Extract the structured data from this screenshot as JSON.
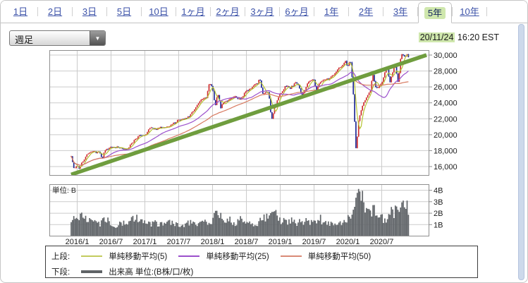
{
  "tabs": {
    "items": [
      {
        "label": "1日"
      },
      {
        "label": "2日"
      },
      {
        "label": "3日"
      },
      {
        "label": "5日"
      },
      {
        "label": "10日"
      },
      {
        "label": "1ヶ月"
      },
      {
        "label": "2ヶ月"
      },
      {
        "label": "3ヶ月"
      },
      {
        "label": "6ヶ月"
      },
      {
        "label": "1年"
      },
      {
        "label": "2年"
      },
      {
        "label": "3年"
      },
      {
        "label": "5年",
        "selected": true
      },
      {
        "label": "10年"
      }
    ],
    "selected_highlight_color": "#cfe7ad",
    "link_color": "#3c52a8"
  },
  "toolbar": {
    "interval": {
      "value": "週足"
    },
    "timestamp": {
      "date": "20/11/24",
      "time": "16:20 EST",
      "date_highlight_color": "#cfe7ad"
    }
  },
  "chart_data": {
    "type": "candlestick",
    "interval_label": "週足",
    "range_label": "5年",
    "x_labels": [
      "2016/1",
      "2016/7",
      "2017/1",
      "2017/7",
      "2018/1",
      "2018/7",
      "2019/1",
      "2019/7",
      "2020/1",
      "2020/7"
    ],
    "main": {
      "ylim": [
        14850,
        30650
      ],
      "yticks": [
        {
          "label": "30,000",
          "value": 30000
        },
        {
          "label": "28,000",
          "value": 28000
        },
        {
          "label": "26,000",
          "value": 26000
        },
        {
          "label": "24,000",
          "value": 24000
        },
        {
          "label": "22,000",
          "value": 22000
        },
        {
          "label": "20,000",
          "value": 20000
        },
        {
          "label": "18,000",
          "value": 18000
        },
        {
          "label": "16,000",
          "value": 16000
        }
      ],
      "candle_up_color": "#cf2e2e",
      "candle_down_color": "#202a96",
      "sma": [
        {
          "window": 5,
          "color": "#b6c332"
        },
        {
          "window": 25,
          "color": "#9b50cc"
        },
        {
          "window": 50,
          "color": "#d87a60"
        }
      ],
      "trendline": {
        "color": "#6f9d3e",
        "width": 5.5,
        "from": {
          "month": "2015/12",
          "price": 15000
        },
        "to": {
          "month": "2021/3",
          "price": 30000
        }
      }
    },
    "volume": {
      "unit_label": "単位: B",
      "ylim": [
        0,
        4.5
      ],
      "yticks": [
        {
          "label": "4B",
          "value": 4
        },
        {
          "label": "3B",
          "value": 3
        },
        {
          "label": "2B",
          "value": 2
        },
        {
          "label": "1B",
          "value": 1
        }
      ],
      "bar_color": "#616569"
    },
    "monthly_anchors": [
      {
        "m": "2015/12",
        "close": 17400,
        "vol": 1.2
      },
      {
        "m": "2016/1",
        "close": 16100,
        "low": 15650,
        "vol": 1.9
      },
      {
        "m": "2016/2",
        "close": 16650,
        "low": 15700,
        "vol": 1.7
      },
      {
        "m": "2016/3",
        "close": 17700,
        "vol": 1.5
      },
      {
        "m": "2016/4",
        "close": 17800,
        "vol": 1.2
      },
      {
        "m": "2016/5",
        "close": 17800,
        "vol": 1.1
      },
      {
        "m": "2016/6",
        "close": 17950,
        "low": 17100,
        "vol": 1.6
      },
      {
        "m": "2016/7",
        "close": 18400,
        "vol": 1.1
      },
      {
        "m": "2016/8",
        "close": 18450,
        "vol": 0.9
      },
      {
        "m": "2016/9",
        "close": 18300,
        "vol": 1.2
      },
      {
        "m": "2016/10",
        "close": 18150,
        "vol": 1.1
      },
      {
        "m": "2016/11",
        "close": 19150,
        "vol": 1.7
      },
      {
        "m": "2016/12",
        "close": 19800,
        "vol": 1.4
      },
      {
        "m": "2017/1",
        "close": 19900,
        "vol": 1.1
      },
      {
        "m": "2017/2",
        "close": 20800,
        "vol": 1.0
      },
      {
        "m": "2017/3",
        "close": 20700,
        "vol": 1.1
      },
      {
        "m": "2017/4",
        "close": 20950,
        "vol": 1.0
      },
      {
        "m": "2017/5",
        "close": 21000,
        "vol": 1.1
      },
      {
        "m": "2017/6",
        "close": 21350,
        "vol": 1.2
      },
      {
        "m": "2017/7",
        "close": 21800,
        "vol": 0.9
      },
      {
        "m": "2017/8",
        "close": 21950,
        "vol": 1.0
      },
      {
        "m": "2017/9",
        "close": 22400,
        "vol": 1.1
      },
      {
        "m": "2017/10",
        "close": 23400,
        "vol": 1.1
      },
      {
        "m": "2017/11",
        "close": 24300,
        "vol": 1.2
      },
      {
        "m": "2017/12",
        "close": 24700,
        "vol": 1.1
      },
      {
        "m": "2018/1",
        "close": 26150,
        "high": 26620,
        "vol": 1.5
      },
      {
        "m": "2018/2",
        "close": 25300,
        "low": 23450,
        "vol": 2.2
      },
      {
        "m": "2018/3",
        "close": 24100,
        "low": 23350,
        "vol": 1.7
      },
      {
        "m": "2018/4",
        "close": 24300,
        "vol": 1.4
      },
      {
        "m": "2018/5",
        "close": 24800,
        "vol": 1.2
      },
      {
        "m": "2018/6",
        "close": 24300,
        "vol": 1.4
      },
      {
        "m": "2018/7",
        "close": 25400,
        "vol": 1.0
      },
      {
        "m": "2018/8",
        "close": 25950,
        "vol": 1.0
      },
      {
        "m": "2018/9",
        "close": 26450,
        "vol": 1.1
      },
      {
        "m": "2018/10",
        "close": 25100,
        "high": 26950,
        "vol": 1.8
      },
      {
        "m": "2018/11",
        "close": 25500,
        "vol": 1.5
      },
      {
        "m": "2018/12",
        "close": 23300,
        "low": 21700,
        "vol": 2.0
      },
      {
        "m": "2019/1",
        "close": 25000,
        "vol": 1.4
      },
      {
        "m": "2019/2",
        "close": 26000,
        "vol": 1.2
      },
      {
        "m": "2019/3",
        "close": 25900,
        "vol": 1.3
      },
      {
        "m": "2019/4",
        "close": 26550,
        "vol": 1.1
      },
      {
        "m": "2019/5",
        "close": 24800,
        "vol": 1.3
      },
      {
        "m": "2019/6",
        "close": 26600,
        "vol": 1.2
      },
      {
        "m": "2019/7",
        "close": 27200,
        "vol": 1.2
      },
      {
        "m": "2019/8",
        "close": 26400,
        "low": 25350,
        "vol": 1.5
      },
      {
        "m": "2019/9",
        "close": 26900,
        "vol": 1.3
      },
      {
        "m": "2019/10",
        "close": 27050,
        "vol": 1.2
      },
      {
        "m": "2019/11",
        "close": 28050,
        "vol": 1.2
      },
      {
        "m": "2019/12",
        "close": 28550,
        "vol": 1.2
      },
      {
        "m": "2020/1",
        "close": 28250,
        "high": 29370,
        "vol": 1.5
      },
      {
        "m": "2020/2",
        "close": 25400,
        "high": 29550,
        "vol": 2.3
      },
      {
        "m": "2020/3",
        "close": 21900,
        "low": 18200,
        "vol": 4.2
      },
      {
        "m": "2020/4",
        "close": 24350,
        "vol": 2.6
      },
      {
        "m": "2020/5",
        "close": 25400,
        "vol": 2.0
      },
      {
        "m": "2020/6",
        "close": 25800,
        "high": 27550,
        "vol": 2.3
      },
      {
        "m": "2020/7",
        "close": 26400,
        "vol": 1.6
      },
      {
        "m": "2020/8",
        "close": 28650,
        "vol": 1.4
      },
      {
        "m": "2020/9",
        "close": 27800,
        "low": 26500,
        "vol": 2.2
      },
      {
        "m": "2020/10",
        "close": 26500,
        "high": 28750,
        "vol": 2.0
      },
      {
        "m": "2020/11",
        "close": 29900,
        "high": 30150,
        "vol": 2.5
      }
    ]
  },
  "legend": {
    "upper": {
      "label": "上段:",
      "items": [
        {
          "label": "単純移動平均(5)",
          "color": "#c3cc5e"
        },
        {
          "label": "単純移動平均(25)",
          "color": "#9b50cc"
        },
        {
          "label": "単純移動平均(50)",
          "color": "#d98a77"
        }
      ]
    },
    "lower": {
      "label": "下段:",
      "items": [
        {
          "label": "出来高 単位:(B株/口/枚)",
          "color": "#5f6366"
        }
      ]
    }
  }
}
